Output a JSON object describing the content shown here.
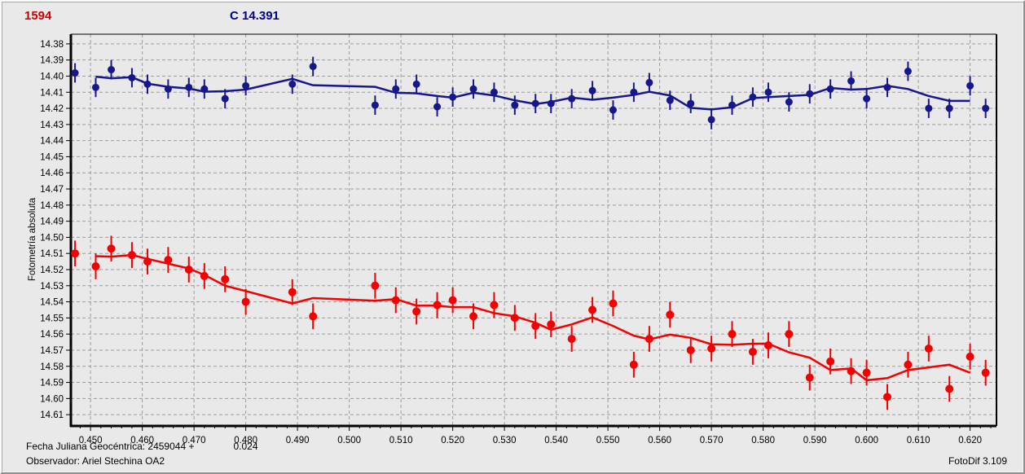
{
  "header": {
    "object_label": "1594",
    "object_color": "#cc0000",
    "comparison_label": "C 14.391",
    "comparison_color": "#00008b"
  },
  "footer": {
    "jd_line": "Fecha Juliana Geocéntrica: 2459044 +",
    "jd_fraction": "0.024",
    "observer_line": "Observador: Ariel Stechina OA2",
    "app_version": "FotoDif 3.109"
  },
  "chart_data": {
    "type": "scatter",
    "title": "",
    "xlabel": "",
    "ylabel": "Fotometría absoluta",
    "grid": "dashed",
    "y_inverted": true,
    "xlim": [
      0.4462,
      0.6251
    ],
    "ylim": [
      14.374,
      14.617
    ],
    "x_ticks": [
      0.45,
      0.46,
      0.47,
      0.48,
      0.49,
      0.5,
      0.51,
      0.52,
      0.53,
      0.54,
      0.55,
      0.56,
      0.57,
      0.58,
      0.59,
      0.6,
      0.61,
      0.62
    ],
    "x_minor_step": 0.002,
    "y_ticks": [
      14.38,
      14.39,
      14.4,
      14.41,
      14.42,
      14.43,
      14.44,
      14.45,
      14.46,
      14.47,
      14.48,
      14.49,
      14.5,
      14.51,
      14.52,
      14.53,
      14.54,
      14.55,
      14.56,
      14.57,
      14.58,
      14.59,
      14.6,
      14.61
    ],
    "smoothing": "centered moving average, window 3",
    "x": [
      0.447,
      0.451,
      0.454,
      0.458,
      0.461,
      0.465,
      0.469,
      0.472,
      0.476,
      0.48,
      0.489,
      0.493,
      0.505,
      0.509,
      0.513,
      0.517,
      0.52,
      0.524,
      0.528,
      0.532,
      0.536,
      0.539,
      0.543,
      0.547,
      0.551,
      0.555,
      0.558,
      0.562,
      0.566,
      0.57,
      0.574,
      0.578,
      0.581,
      0.585,
      0.589,
      0.593,
      0.597,
      0.6,
      0.604,
      0.608,
      0.612,
      0.616,
      0.62,
      0.623
    ],
    "series": [
      {
        "id": "asteroid-1594",
        "name": "1594 (asteroid)",
        "color": "#f40000",
        "marker_size": 5,
        "err": 0.008,
        "values": [
          14.51,
          14.518,
          14.507,
          14.511,
          14.515,
          14.514,
          14.52,
          14.524,
          14.526,
          14.54,
          14.534,
          14.549,
          14.53,
          14.539,
          14.546,
          14.542,
          14.539,
          14.549,
          14.542,
          14.55,
          14.555,
          14.554,
          14.563,
          14.545,
          14.541,
          14.579,
          14.563,
          14.548,
          14.57,
          14.569,
          14.56,
          14.571,
          14.567,
          14.56,
          14.587,
          14.577,
          14.583,
          14.584,
          14.599,
          14.579,
          14.569,
          14.594,
          14.574,
          14.584
        ]
      },
      {
        "id": "comparison-star",
        "name": "C 14.391 (comparison star)",
        "color": "#17178c",
        "marker_size": 4.5,
        "err": 0.006,
        "values": [
          14.398,
          14.407,
          14.396,
          14.401,
          14.405,
          14.408,
          14.407,
          14.408,
          14.414,
          14.406,
          14.405,
          14.394,
          14.418,
          14.408,
          14.405,
          14.419,
          14.413,
          14.408,
          14.41,
          14.418,
          14.417,
          14.417,
          14.414,
          14.409,
          14.421,
          14.41,
          14.404,
          14.415,
          14.417,
          14.427,
          14.418,
          14.413,
          14.41,
          14.416,
          14.411,
          14.408,
          14.403,
          14.414,
          14.407,
          14.397,
          14.42,
          14.42,
          14.406,
          14.42
        ]
      }
    ]
  }
}
